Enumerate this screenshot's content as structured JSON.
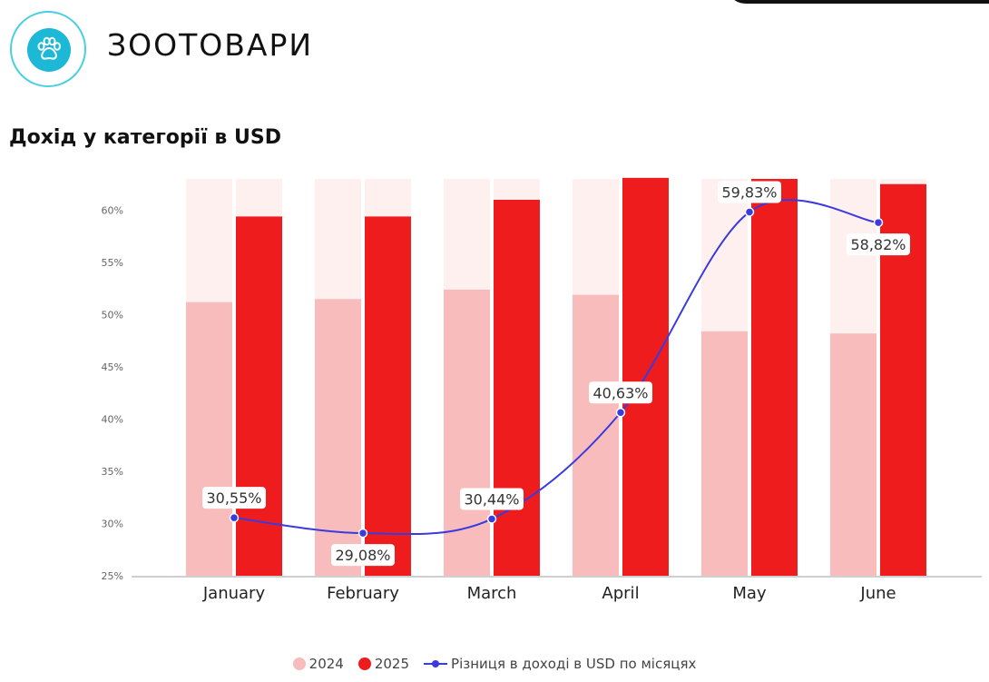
{
  "header": {
    "brand": "ЗООТОВАРИ",
    "logo_icon": "paw-icon",
    "colors": {
      "logo": "#1cb8d6",
      "logo_ring": "#49d0e0"
    }
  },
  "chart_data": {
    "type": "bar",
    "title": "Дохід у категорії в USD",
    "categories": [
      "January",
      "February",
      "March",
      "April",
      "May",
      "June"
    ],
    "y_ticks": [
      "25%",
      "30%",
      "35%",
      "40%",
      "45%",
      "50%",
      "55%",
      "60%"
    ],
    "ylim": [
      25,
      63
    ],
    "grid": false,
    "legend_position": "bottom-center",
    "series": [
      {
        "name": "2024",
        "type": "bar",
        "color": "#f9bcbc",
        "values": [
          51.2,
          51.5,
          52.4,
          51.9,
          48.4,
          48.2
        ]
      },
      {
        "name": "2025",
        "type": "bar",
        "color": "#ee1c1c",
        "values": [
          59.4,
          59.4,
          61.0,
          63.1,
          63.0,
          62.5
        ]
      },
      {
        "name": "Різниця в доході в USD по місяцях",
        "type": "line",
        "color": "#3a3ae0",
        "values": [
          30.55,
          29.08,
          30.44,
          40.63,
          59.83,
          58.82
        ],
        "labels": [
          "30,55%",
          "29,08%",
          "30,44%",
          "40,63%",
          "59,83%",
          "58,82%"
        ]
      }
    ],
    "background_bar_color": "#fff0f0"
  }
}
